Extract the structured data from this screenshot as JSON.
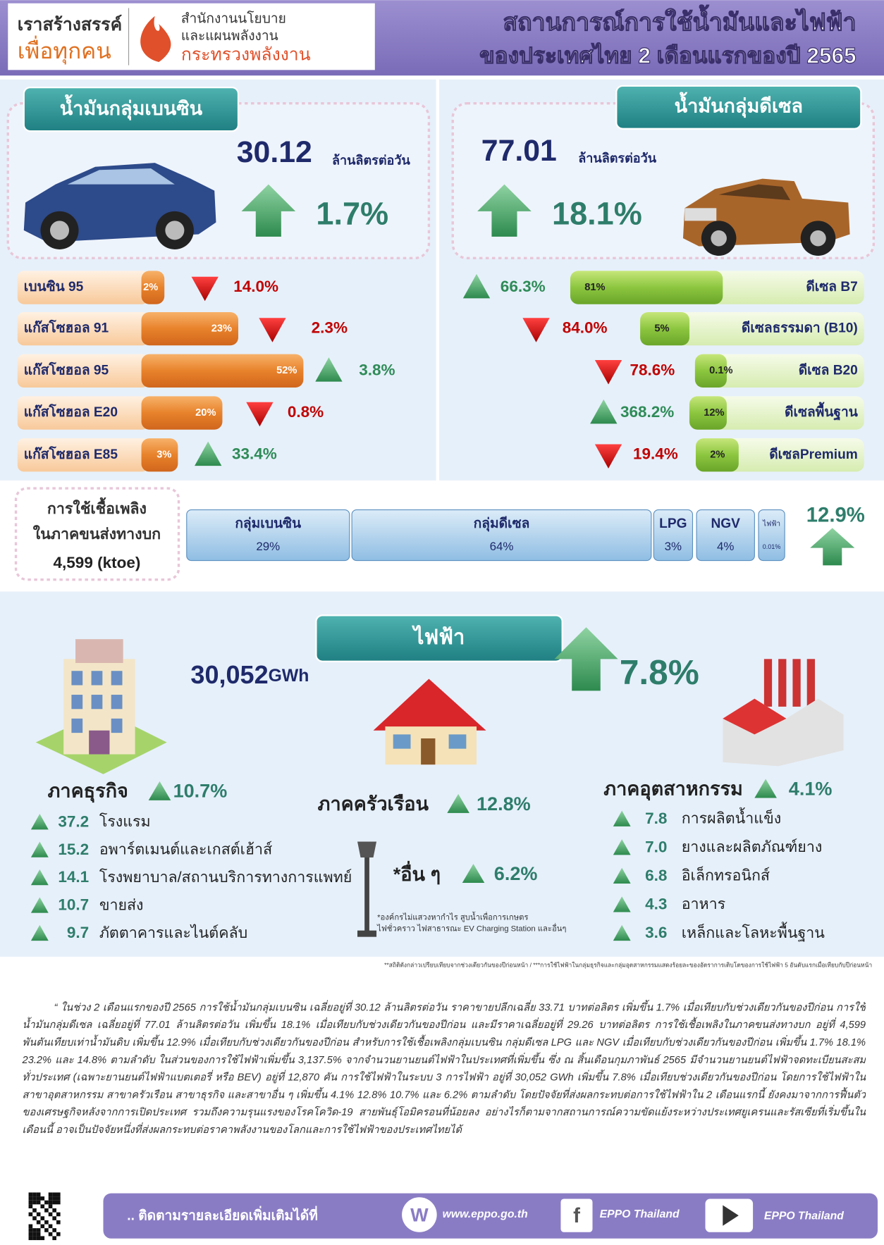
{
  "header": {
    "brand1": "เราสร้างสรรค์",
    "brand2": "เพื่อทุกคน",
    "org1": "สำนักงานนโยบาย",
    "org2": "และแผนพลังงาน",
    "org3": "กระทรวงพลังงาน",
    "title1": "สถานการณ์การใช้น้ำมันและไฟฟ้า",
    "title2": "ของประเทศไทย 2 เดือนแรกของปี 2565"
  },
  "benzine": {
    "title": "น้ำมันกลุ่มเบนซิน",
    "amount": "30.12",
    "unit": "ล้านลิตรต่อวัน",
    "change": "1.7%",
    "items": [
      {
        "name": "เบนซิน 95",
        "share": "2%",
        "change": "14.0%",
        "dir": "down"
      },
      {
        "name": "แก๊สโซฮอล 91",
        "share": "23%",
        "change": "2.3%",
        "dir": "down"
      },
      {
        "name": "แก๊สโซฮอล 95",
        "share": "52%",
        "change": "3.8%",
        "dir": "up"
      },
      {
        "name": "แก๊สโซฮอล E20",
        "share": "20%",
        "change": "0.8%",
        "dir": "down"
      },
      {
        "name": "แก๊สโซฮอล E85",
        "share": "3%",
        "change": "33.4%",
        "dir": "up"
      }
    ]
  },
  "diesel": {
    "title": "น้ำมันกลุ่มดีเซล",
    "amount": "77.01",
    "unit": "ล้านลิตรต่อวัน",
    "change": "18.1%",
    "items": [
      {
        "name": "ดีเซล B7",
        "share": "81%",
        "change": "66.3%",
        "dir": "up"
      },
      {
        "name": "ดีเซลธรรมดา (B10)",
        "share": "5%",
        "change": "84.0%",
        "dir": "down"
      },
      {
        "name": "ดีเซล B20",
        "share": "0.1%",
        "change": "78.6%",
        "dir": "down"
      },
      {
        "name": "ดีเซลพื้นฐาน",
        "share": "12%",
        "change": "368.2%",
        "dir": "up"
      },
      {
        "name": "ดีเซลPremium",
        "share": "2%",
        "change": "19.4%",
        "dir": "down"
      }
    ]
  },
  "transport": {
    "label1": "การใช้เชื้อเพลิง",
    "label2": "ในภาคขนส่งทางบก",
    "total": "4,599 (ktoe)",
    "change": "12.9%",
    "segments": [
      {
        "name": "กลุ่มเบนซิน",
        "share": "29%"
      },
      {
        "name": "กลุ่มดีเซล",
        "share": "64%"
      },
      {
        "name": "LPG",
        "share": "3%"
      },
      {
        "name": "NGV",
        "share": "4%"
      },
      {
        "name": "ไฟฟ้า",
        "share": "0.01%"
      }
    ]
  },
  "electricity": {
    "title": "ไฟฟ้า",
    "amount": "30,052",
    "unit": "GWh",
    "change": "7.8%",
    "business": {
      "name": "ภาคธุรกิจ",
      "change": "10.7%",
      "items": [
        {
          "value": "37.2",
          "name": "โรงแรม"
        },
        {
          "value": "15.2",
          "name": "อพาร์ตเมนต์และเกสต์เฮ้าส์"
        },
        {
          "value": "14.1",
          "name": "โรงพยาบาล/สถานบริการทางการแพทย์"
        },
        {
          "value": "10.7",
          "name": "ขายส่ง"
        },
        {
          "value": "9.7",
          "name": "ภัตตาคารและไนต์คลับ"
        }
      ]
    },
    "household": {
      "name": "ภาคครัวเรือน",
      "change": "12.8%"
    },
    "other": {
      "name": "*อื่น ๆ",
      "change": "6.2%",
      "note1": "*องค์กรไม่แสวงหากำไร  สูบน้ำเพื่อการเกษตร",
      "note2": "ไฟชั่วคราว  ไฟสาธารณะ  EV Charging Station และอื่นๆ"
    },
    "industry": {
      "name": "ภาคอุตสาหกรรม",
      "change": "4.1%",
      "items": [
        {
          "value": "7.8",
          "name": "การผลิตน้ำแข็ง"
        },
        {
          "value": "7.0",
          "name": "ยางและผลิตภัณฑ์ยาง"
        },
        {
          "value": "6.8",
          "name": "อิเล็กทรอนิกส์"
        },
        {
          "value": "4.3",
          "name": "อาหาร"
        },
        {
          "value": "3.6",
          "name": "เหล็กและโลหะพื้นฐาน"
        }
      ]
    }
  },
  "footnote": "**สถิติดังกล่าวเปรียบเทียบจากช่วงเดียวกันของปีก่อนหน้า / ***การใช้ไฟฟ้าในกลุ่มธุรกิจและกลุ่มอุตสาหกรรมแสดงร้อยละของอัตราการเติบโตของการใช้ไฟฟ้า 5 อันดับแรกเมื่อเทียบกับปีก่อนหน้า",
  "summary": "“ ในช่วง 2 เดือนแรกของปี 2565 การใช้น้ำมันกลุ่มเบนซิน เฉลี่ยอยู่ที่ 30.12 ล้านลิตรต่อวัน ราคาขายปลีกเฉลี่ย 33.71 บาทต่อลิตร เพิ่มขึ้น 1.7% เมื่อเทียบกับช่วงเดียวกันของปีก่อน การใช้น้ำมันกลุ่มดีเซล เฉลี่ยอยู่ที่ 77.01 ล้านลิตรต่อวัน เพิ่มขึ้น 18.1% เมื่อเทียบกับช่วงเดียวกันของปีก่อน และมีราคาเฉลี่ยอยู่ที่ 29.26 บาทต่อลิตร การใช้เชื้อเพลิงในภาคขนส่งทางบก อยู่ที่ 4,599 พันตันเทียบเท่าน้ำมันดิบ เพิ่มขึ้น 12.9% เมื่อเทียบกับช่วงเดียวกันของปีก่อน สำหรับการใช้เชื้อเพลิงกลุ่มเบนซิน กลุ่มดีเซล LPG และ NGV เมื่อเทียบกับช่วงเดียวกันของปีก่อน เพิ่มขึ้น 1.7% 18.1% 23.2% และ 14.8% ตามลำดับ ในส่วนของการใช้ไฟฟ้าเพิ่มขึ้น 3,137.5% จากจำนวนยานยนต์ไฟฟ้าในประเทศที่เพิ่มขึ้น ซึ่ง ณ สิ้นเดือนกุมภาพันธ์ 2565 มีจำนวนยานยนต์ไฟฟ้าจดทะเบียนสะสมทั่วประเทศ (เฉพาะยานยนต์ไฟฟ้าแบตเตอรี่ หรือ BEV) อยู่ที่ 12,870 คัน การใช้ไฟฟ้าในระบบ 3 การไฟฟ้า อยู่ที่ 30,052 GWh เพิ่มขึ้น 7.8% เมื่อเทียบช่วงเดียวกันของปีก่อน โดยการใช้ไฟฟ้าในสาขาอุตสาหกรรม สาขาครัวเรือน สาขาธุรกิจ และสาขาอื่น ๆ เพิ่มขึ้น 4.1% 12.8% 10.7% และ 6.2% ตามลำดับ โดยปัจจัยที่ส่งผลกระทบต่อการใช้ไฟฟ้าใน 2 เดือนแรกนี้ ยังคงมาจากการฟื้นตัวของเศรษฐกิจหลังจากการเปิดประเทศ รวมถึงความรุนแรงของโรคโควิด-19 สายพันธุ์โอมิครอนที่น้อยลง อย่างไรก็ตามจากสถานการณ์ความขัดแย้งระหว่างประเทศยูเครนและรัสเซียที่เริ่มขึ้นในเดือนนี้ อาจเป็นปัจจัยหนึ่งที่ส่งผลกระทบต่อราคาพลังงานของโลกและการใช้ไฟฟ้าของประเทศไทยได้",
  "footer": {
    "follow": ".. ติดตามรายละเอียดเพิ่มเติมได้ที่",
    "web": "www.eppo.go.th",
    "facebook": "EPPO Thailand",
    "youtube": "EPPO Thailand"
  }
}
